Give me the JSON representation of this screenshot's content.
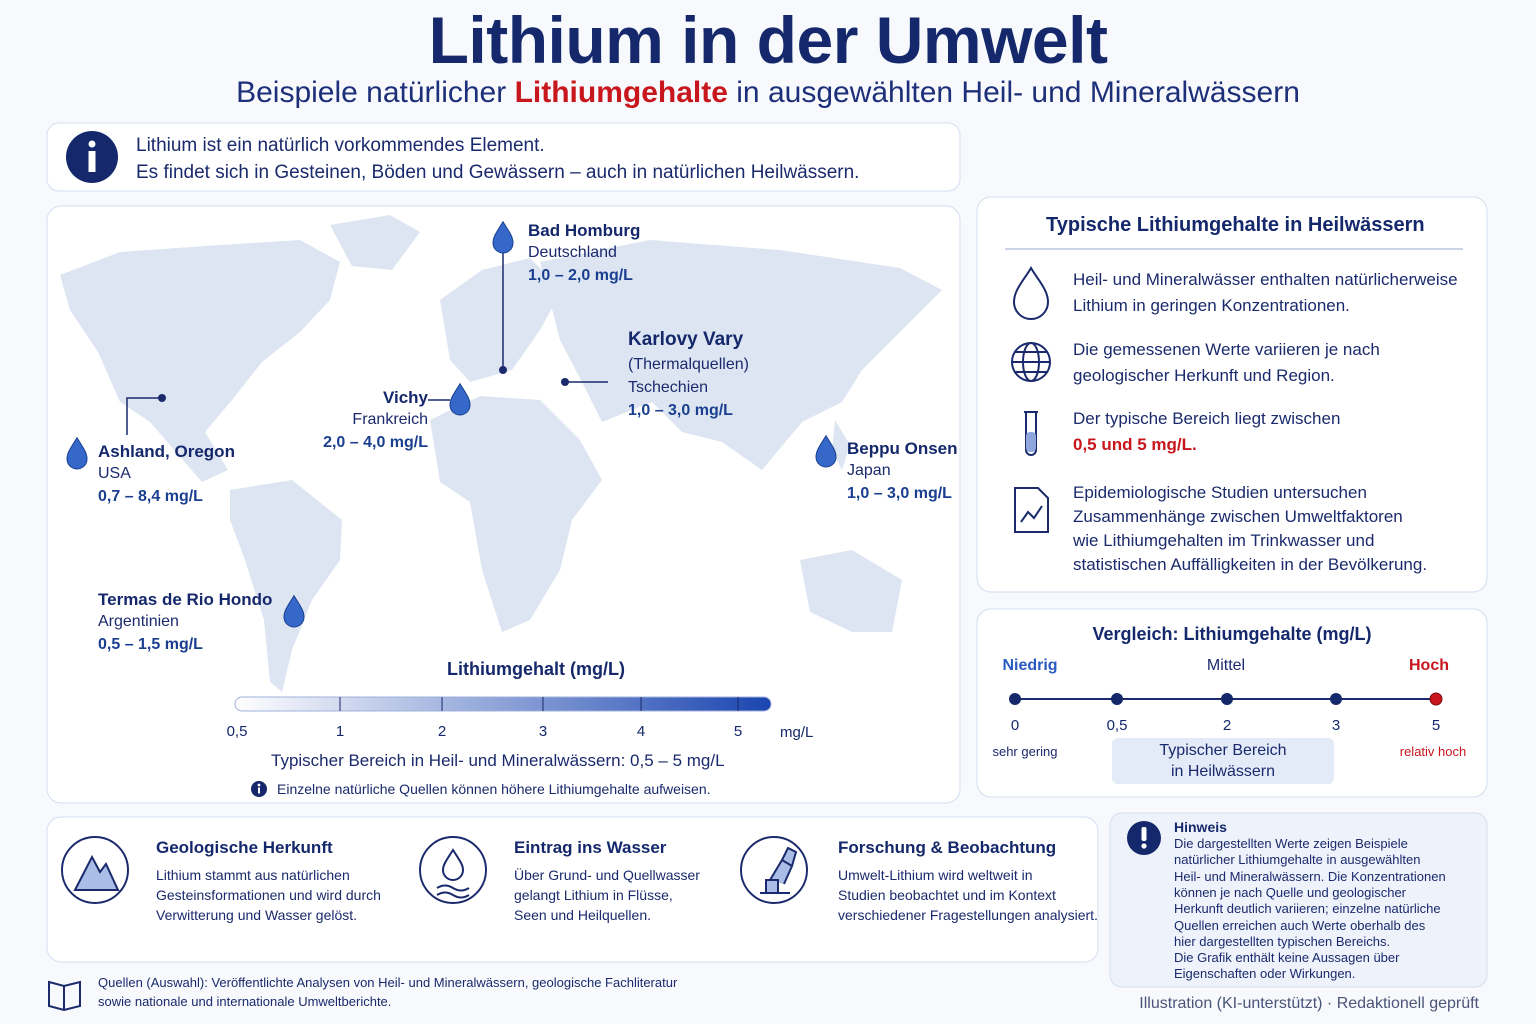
{
  "header": {
    "title": "Lithium in der Umwelt",
    "subtitle_before": "Beispiele natürlicher",
    "subtitle_highlight": "Lithiumgehalte",
    "subtitle_after": "in ausgewählten Heil- und Mineralwässern"
  },
  "intro": {
    "lines": [
      "Lithium ist ein natürlich vorkommendes Element.",
      "Es findet sich in Gesteinen, Böden und Gewässern – auch in natürlichen Heilwässern."
    ]
  },
  "map": {
    "locations": [
      {
        "name": "Bad Homburg",
        "details": [
          "Deutschland"
        ],
        "range": "1,0 – 2,0 mg/L"
      },
      {
        "name": "Karlovy Vary",
        "details": [
          "(Thermalquellen)",
          "Tschechien"
        ],
        "range": "1,0 – 3,0 mg/L"
      },
      {
        "name": "Vichy",
        "details": [
          "Frankreich"
        ],
        "range": "2,0 – 4,0 mg/L"
      },
      {
        "name": "Ashland, Oregon",
        "details": [
          "USA"
        ],
        "range": "0,7 – 8,4 mg/L"
      },
      {
        "name": "Beppu Onsen",
        "details": [
          "Japan"
        ],
        "range": "1,0 – 3,0 mg/L"
      },
      {
        "name": "Termas de Rio Hondo",
        "details": [
          "Argentinien"
        ],
        "range": "0,5 – 1,5 mg/L"
      }
    ],
    "legend": {
      "title": "Lithiumgehalt (mg/L)",
      "ticks": [
        "0,5",
        "1",
        "2",
        "3",
        "4",
        "5"
      ],
      "unit": "mg/L",
      "range_note": "Typischer Bereich in Heil- und Mineralwässern: 0,5 – 5 mg/L",
      "note": "Einzelne natürliche Quellen können höhere Lithiumgehalte aufweisen."
    }
  },
  "typical_panel": {
    "title": "Typische Lithiumgehalte in Heilwässern",
    "items": [
      {
        "lines": [
          "Heil- und Mineralwässer enthalten natürlicherweise",
          "Lithium in geringen Konzentrationen."
        ]
      },
      {
        "lines": [
          "Die gemessenen Werte variieren je nach",
          "geologischer Herkunft und Region."
        ]
      },
      {
        "lines": [
          "Der typische Bereich liegt zwischen"
        ],
        "highlight": "0,5 und 5 mg/L."
      },
      {
        "lines": [
          "Epidemiologische Studien untersuchen",
          "Zusammenhänge zwischen Umweltfaktoren",
          "wie Lithiumgehalten im Trinkwasser und",
          "statistischen Auffälligkeiten in der Bevölkerung."
        ]
      }
    ]
  },
  "comparison": {
    "title": "Vergleich: Lithiumgehalte (mg/L)",
    "levels": [
      "Niedrig",
      "Mittel",
      "Hoch"
    ],
    "points": [
      "0",
      "0,5",
      "2",
      "3",
      "5"
    ],
    "low_label": "sehr gering",
    "range_label": [
      "Typischer Bereich",
      "in Heilwässern"
    ],
    "high_label": "relativ hoch"
  },
  "facts": [
    {
      "title": "Geologische Herkunft",
      "lines": [
        "Lithium stammt aus natürlichen",
        "Gesteinsformationen und wird durch",
        "Verwitterung und Wasser gelöst."
      ]
    },
    {
      "title": "Eintrag ins Wasser",
      "lines": [
        "Über Grund- und Quellwasser",
        "gelangt Lithium in Flüsse,",
        "Seen und Heilquellen."
      ]
    },
    {
      "title": "Forschung & Beobachtung",
      "lines": [
        "Umwelt-Lithium wird weltweit in",
        "Studien beobachtet und im Kontext",
        "verschiedener Fragestellungen analysiert."
      ]
    }
  ],
  "notice": {
    "title": "Hinweis",
    "lines": [
      "Die dargestellten Werte zeigen Beispiele",
      "natürlicher Lithiumgehalte in ausgewählten",
      "Heil- und Mineralwässern. Die Konzentrationen",
      "können je nach Quelle und geologischer",
      "Herkunft deutlich variieren; einzelne natürliche",
      "Quellen erreichen auch Werte oberhalb des",
      "hier dargestellten typischen Bereichs.",
      "Die Grafik enthält keine Aussagen über",
      "Eigenschaften oder Wirkungen."
    ]
  },
  "sources": {
    "lines": [
      "Quellen (Auswahl): Veröffentlichte Analysen von Heil- und Mineralwässern, geologische Fachliteratur",
      "sowie nationale und internationale Umweltberichte."
    ]
  },
  "credit": "Illustration (KI-unterstützt) · Redaktionell geprüft"
}
